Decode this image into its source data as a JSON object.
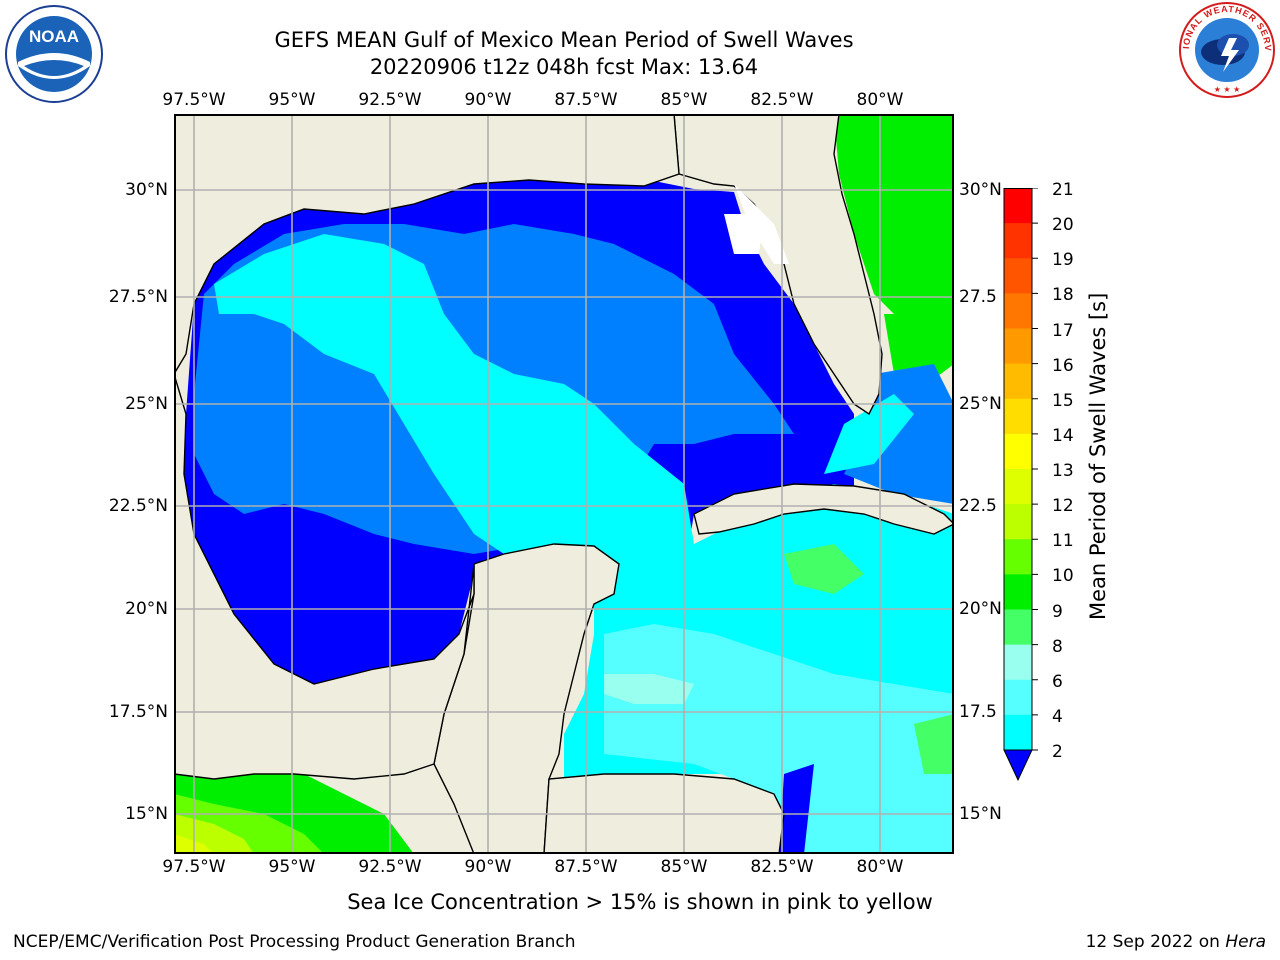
{
  "title": "GEFS MEAN Gulf of Mexico Mean Period of Swell Waves",
  "subtitle": "20220906 t12z 048h fcst   Max: 13.64",
  "map": {
    "lon_labels": [
      "97.5°W",
      "95°W",
      "92.5°W",
      "90°W",
      "87.5°W",
      "85°W",
      "82.5°W",
      "80°W"
    ],
    "lat_labels_left": [
      "30°N",
      "27.5°N",
      "25°N",
      "22.5°N",
      "20°N",
      "17.5°N",
      "15°N"
    ],
    "lat_labels_right": [
      "30°N",
      "27.5",
      "25°N",
      "22.5",
      "20°N",
      "17.5",
      "15°N"
    ],
    "land_color": "#efeddd",
    "gridline_color": "#b0b0b0"
  },
  "colorbar": {
    "label": "Mean Period of Swell Waves [s]",
    "ticks": [
      "21",
      "20",
      "19",
      "18",
      "17",
      "16",
      "15",
      "14",
      "13",
      "12",
      "11",
      "10",
      "9",
      "8",
      "6",
      "4",
      "2"
    ],
    "colors": [
      "#ff0000",
      "#ff3300",
      "#ff5500",
      "#ff7700",
      "#ff9900",
      "#ffbb00",
      "#ffdd00",
      "#ffff00",
      "#ddff00",
      "#bbff00",
      "#66ff00",
      "#00ee00",
      "#44ff66",
      "#99ffee",
      "#55ffff",
      "#00ffff",
      "#0080ff",
      "#0000ff"
    ]
  },
  "note": "Sea Ice Concentration > 15% is shown in pink to yellow",
  "footer": {
    "left": "NCEP/EMC/Verification Post Processing Product Generation Branch",
    "right_prefix": "12 Sep 2022 on ",
    "right_machine": "Hera"
  },
  "logos": {
    "noaa_text": "NOAA",
    "nws_text": "NATIONAL WEATHER SERVICE"
  }
}
